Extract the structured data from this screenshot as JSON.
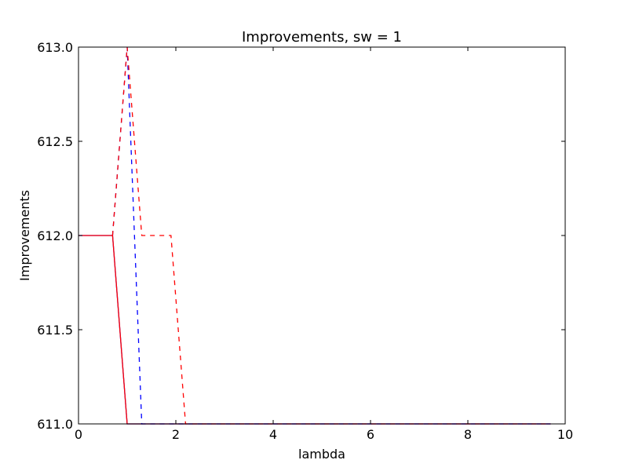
{
  "chart_data": {
    "type": "line",
    "title": "Improvements, sw = 1",
    "xlabel": "lambda",
    "ylabel": "Improvements",
    "xlim": [
      0,
      10
    ],
    "ylim": [
      611.0,
      613.0
    ],
    "xticks": [
      0,
      2,
      4,
      6,
      8,
      10
    ],
    "xtick_labels": [
      "0",
      "2",
      "4",
      "6",
      "8",
      "10"
    ],
    "yticks": [
      611.0,
      611.5,
      612.0,
      612.5,
      613.0
    ],
    "ytick_labels": [
      "611.0",
      "611.5",
      "612.0",
      "612.5",
      "613.0"
    ],
    "grid": false,
    "legend": "none",
    "series": [
      {
        "color": "#0000ff",
        "style": "solid",
        "x": [
          0,
          0.7,
          1.0,
          9.7
        ],
        "y": [
          612,
          612,
          611,
          611
        ]
      },
      {
        "color": "#ff0000",
        "style": "solid",
        "x": [
          0,
          0.7,
          1.0,
          9.7
        ],
        "y": [
          612,
          612,
          611,
          611
        ]
      },
      {
        "color": "#0000ff",
        "style": "dashed",
        "x": [
          0.7,
          1.0,
          1.3,
          9.7
        ],
        "y": [
          612,
          613,
          611,
          611
        ]
      },
      {
        "color": "#ff0000",
        "style": "dashed",
        "x": [
          0.7,
          1.0,
          1.3,
          1.9,
          2.2,
          9.7
        ],
        "y": [
          612,
          613,
          612,
          612,
          611,
          611
        ]
      }
    ]
  }
}
